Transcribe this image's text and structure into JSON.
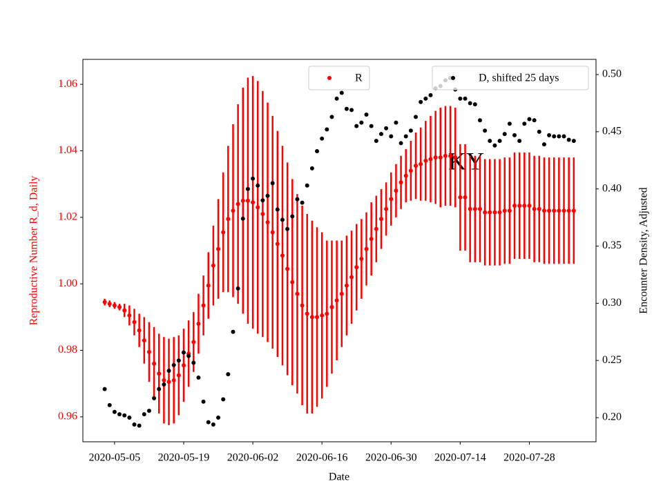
{
  "chart_data": {
    "type": "errorbar_dual_axis",
    "annotation": "KY",
    "x_label": "Date",
    "y_label": "Reproductive Number R_d, Daily",
    "y2_label": "Encounter Density, Adjusted",
    "x": [
      "2020-05-03",
      "2020-05-04",
      "2020-05-05",
      "2020-05-06",
      "2020-05-07",
      "2020-05-08",
      "2020-05-09",
      "2020-05-10",
      "2020-05-11",
      "2020-05-12",
      "2020-05-13",
      "2020-05-14",
      "2020-05-15",
      "2020-05-16",
      "2020-05-17",
      "2020-05-18",
      "2020-05-19",
      "2020-05-20",
      "2020-05-21",
      "2020-05-22",
      "2020-05-23",
      "2020-05-24",
      "2020-05-25",
      "2020-05-26",
      "2020-05-27",
      "2020-05-28",
      "2020-05-29",
      "2020-05-30",
      "2020-05-31",
      "2020-06-01",
      "2020-06-02",
      "2020-06-03",
      "2020-06-04",
      "2020-06-05",
      "2020-06-06",
      "2020-06-07",
      "2020-06-08",
      "2020-06-09",
      "2020-06-10",
      "2020-06-11",
      "2020-06-12",
      "2020-06-13",
      "2020-06-14",
      "2020-06-15",
      "2020-06-16",
      "2020-06-17",
      "2020-06-18",
      "2020-06-19",
      "2020-06-20",
      "2020-06-21",
      "2020-06-22",
      "2020-06-23",
      "2020-06-24",
      "2020-06-25",
      "2020-06-26",
      "2020-06-27",
      "2020-06-28",
      "2020-06-29",
      "2020-06-30",
      "2020-07-01",
      "2020-07-02",
      "2020-07-03",
      "2020-07-04",
      "2020-07-05",
      "2020-07-06",
      "2020-07-07",
      "2020-07-08",
      "2020-07-09",
      "2020-07-10",
      "2020-07-11",
      "2020-07-12",
      "2020-07-13",
      "2020-07-14",
      "2020-07-15",
      "2020-07-16",
      "2020-07-17",
      "2020-07-18",
      "2020-07-19",
      "2020-07-20",
      "2020-07-21",
      "2020-07-22",
      "2020-07-23",
      "2020-07-24",
      "2020-07-25",
      "2020-07-26",
      "2020-07-27",
      "2020-07-28",
      "2020-07-29",
      "2020-07-30",
      "2020-07-31",
      "2020-08-01",
      "2020-08-02",
      "2020-08-03",
      "2020-08-04",
      "2020-08-05",
      "2020-08-06"
    ],
    "xlim": [
      "2020-04-28T14:00:00Z",
      "2020-08-10T12:00:00Z"
    ],
    "xticks": [
      "2020-05-05",
      "2020-05-19",
      "2020-06-02",
      "2020-06-16",
      "2020-06-30",
      "2020-07-14",
      "2020-07-28"
    ],
    "ylim": [
      0.9525,
      1.0675
    ],
    "yticks": [
      0.96,
      0.98,
      {
        "value": 1,
        "label": "1.00"
      },
      1.02,
      1.04,
      1.06
    ],
    "y2lim": [
      0.1789,
      0.5133
    ],
    "y2ticks": [
      {
        "value": 0.2,
        "label": "0.20"
      },
      0.25,
      {
        "value": 0.3,
        "label": "0.30"
      },
      0.35,
      {
        "value": 0.4,
        "label": "0.40"
      },
      0.45,
      {
        "value": 0.5,
        "label": "0.50"
      }
    ],
    "series": [
      {
        "name": "R",
        "color": "#ff0000",
        "axis": "y",
        "values": [
          0.9945,
          0.994,
          0.9935,
          0.993,
          0.992,
          0.9905,
          0.9885,
          0.986,
          0.983,
          0.9795,
          0.976,
          0.973,
          0.971,
          0.9705,
          0.971,
          0.9725,
          0.9755,
          0.979,
          0.9825,
          0.988,
          0.9935,
          0.9995,
          1.0055,
          1.0105,
          1.0155,
          1.0195,
          1.022,
          1.024,
          1.025,
          1.025,
          1.0245,
          1.023,
          1.021,
          1.0185,
          1.0155,
          1.012,
          1.0085,
          1.0045,
          1.0005,
          0.997,
          0.9935,
          0.991,
          0.99,
          0.99,
          0.9905,
          0.991,
          0.993,
          0.995,
          0.997,
          0.9995,
          1.002,
          1.005,
          1.0075,
          1.0105,
          1.0135,
          1.0165,
          1.0195,
          1.0225,
          1.0255,
          1.028,
          1.0305,
          1.0325,
          1.034,
          1.0355,
          1.036,
          1.037,
          1.0375,
          1.038,
          1.038,
          1.0385,
          1.0385,
          1.038,
          1.026,
          1.026,
          1.0225,
          1.0225,
          1.0225,
          1.0215,
          1.0215,
          1.0215,
          1.0215,
          1.022,
          1.022,
          1.0235,
          1.0235,
          1.0235,
          1.0235,
          1.0225,
          1.0225,
          1.022,
          1.022,
          1.022,
          1.022,
          1.022,
          1.022,
          1.022
        ],
        "errors": [
          0.001,
          0.001,
          0.001,
          0.001,
          0.002,
          0.003,
          0.004,
          0.005,
          0.007,
          0.009,
          0.011,
          0.012,
          0.013,
          0.013,
          0.013,
          0.012,
          0.011,
          0.01,
          0.009,
          0.009,
          0.009,
          0.01,
          0.012,
          0.015,
          0.018,
          0.022,
          0.026,
          0.03,
          0.034,
          0.037,
          0.038,
          0.038,
          0.037,
          0.036,
          0.035,
          0.034,
          0.033,
          0.032,
          0.031,
          0.03,
          0.03,
          0.03,
          0.029,
          0.027,
          0.025,
          0.022,
          0.02,
          0.018,
          0.016,
          0.015,
          0.014,
          0.013,
          0.012,
          0.011,
          0.011,
          0.01,
          0.009,
          0.008,
          0.008,
          0.008,
          0.008,
          0.008,
          0.009,
          0.01,
          0.011,
          0.012,
          0.013,
          0.014,
          0.015,
          0.015,
          0.015,
          0.015,
          0.016,
          0.016,
          0.016,
          0.016,
          0.016,
          0.016,
          0.016,
          0.016,
          0.016,
          0.016,
          0.016,
          0.016,
          0.016,
          0.016,
          0.016,
          0.016,
          0.016,
          0.016,
          0.016,
          0.016,
          0.016,
          0.016,
          0.016,
          0.016
        ]
      },
      {
        "name": "D, shifted 25 days",
        "color": "#000000",
        "axis": "y2",
        "values": [
          0.225,
          0.211,
          0.205,
          0.203,
          0.202,
          0.2,
          0.194,
          0.193,
          0.203,
          0.206,
          0.217,
          0.225,
          0.229,
          0.241,
          0.246,
          0.25,
          0.257,
          0.254,
          0.248,
          0.235,
          0.214,
          0.196,
          0.194,
          0.2,
          0.216,
          0.238,
          0.275,
          0.313,
          0.374,
          0.4,
          0.409,
          0.403,
          0.39,
          0.394,
          0.405,
          0.382,
          0.373,
          0.365,
          0.376,
          0.391,
          0.388,
          0.403,
          0.418,
          0.433,
          0.444,
          0.452,
          0.463,
          0.479,
          0.484,
          0.47,
          0.469,
          0.455,
          0.458,
          0.465,
          0.455,
          0.442,
          0.448,
          0.453,
          0.446,
          0.458,
          0.44,
          0.446,
          0.451,
          0.463,
          0.476,
          0.479,
          0.482,
          0.488,
          0.49,
          0.495,
          0.497,
          0.487,
          0.479,
          0.479,
          0.475,
          0.474,
          0.46,
          0.451,
          0.442,
          0.438,
          0.442,
          0.448,
          0.457,
          0.447,
          0.442,
          0.457,
          0.461,
          0.46,
          0.45,
          0.439,
          0.447,
          0.446,
          0.446,
          0.446,
          0.443,
          0.442
        ]
      }
    ]
  }
}
